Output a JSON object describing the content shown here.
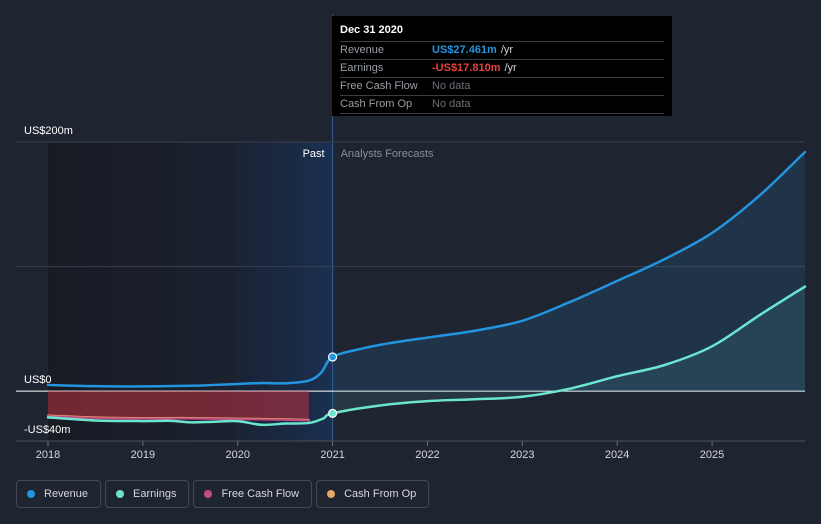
{
  "tooltip": {
    "date": "Dec 31 2020",
    "rows": [
      {
        "label": "Revenue",
        "value": "US$27.461m",
        "unit": "/yr",
        "color": "#2394df"
      },
      {
        "label": "Earnings",
        "value": "-US$17.810m",
        "unit": "/yr",
        "color": "#e64141"
      },
      {
        "label": "Free Cash Flow",
        "value": "No data",
        "unit": "",
        "color": ""
      },
      {
        "label": "Cash From Op",
        "value": "No data",
        "unit": "",
        "color": ""
      }
    ]
  },
  "regions": {
    "past": "Past",
    "forecast": "Analysts Forecasts"
  },
  "legend": [
    {
      "label": "Revenue",
      "color": "#2394df"
    },
    {
      "label": "Earnings",
      "color": "#6ce5cf"
    },
    {
      "label": "Free Cash Flow",
      "color": "#c34c85"
    },
    {
      "label": "Cash From Op",
      "color": "#e8a85f"
    }
  ],
  "chart_data": {
    "type": "line",
    "y_tick_labels": [
      {
        "value": 200,
        "label": "US$200m"
      },
      {
        "value": 0,
        "label": "US$0"
      },
      {
        "value": -40,
        "label": "-US$40m"
      }
    ],
    "ylim": [
      -40,
      200
    ],
    "xlim": [
      2018.0,
      2025.98
    ],
    "x_ticks": [
      2018,
      2019,
      2020,
      2021,
      2022,
      2023,
      2024,
      2025
    ],
    "x_tick_labels": [
      "2018",
      "2019",
      "2020",
      "2021",
      "2022",
      "2023",
      "2024",
      "2025"
    ],
    "past_end": 2021.0,
    "highlight_start": 2020.0,
    "series": [
      {
        "name": "Revenue",
        "color": "#2394df",
        "points": [
          [
            2018.0,
            5.0
          ],
          [
            2018.5,
            4.0
          ],
          [
            2019.0,
            3.8
          ],
          [
            2019.5,
            4.3
          ],
          [
            2019.75,
            5.0
          ],
          [
            2020.0,
            5.8
          ],
          [
            2020.25,
            6.5
          ],
          [
            2020.5,
            6.3
          ],
          [
            2020.75,
            8.5
          ],
          [
            2020.88,
            15.0
          ],
          [
            2021.0,
            27.461
          ],
          [
            2021.3,
            34.0
          ],
          [
            2021.6,
            38.5
          ],
          [
            2022.0,
            43.0
          ],
          [
            2022.5,
            48.5
          ],
          [
            2023.0,
            56.5
          ],
          [
            2023.5,
            71.5
          ],
          [
            2024.0,
            88.5
          ],
          [
            2024.5,
            106.0
          ],
          [
            2025.0,
            127.0
          ],
          [
            2025.5,
            157.0
          ],
          [
            2025.98,
            192.0
          ]
        ]
      },
      {
        "name": "Earnings",
        "color": "#6ce5cf",
        "points": [
          [
            2018.0,
            -21.0
          ],
          [
            2018.5,
            -23.5
          ],
          [
            2019.0,
            -24.0
          ],
          [
            2019.3,
            -23.8
          ],
          [
            2019.5,
            -25.0
          ],
          [
            2019.75,
            -24.5
          ],
          [
            2020.0,
            -24.0
          ],
          [
            2020.25,
            -27.0
          ],
          [
            2020.5,
            -26.0
          ],
          [
            2020.75,
            -25.5
          ],
          [
            2020.9,
            -22.0
          ],
          [
            2021.0,
            -17.81
          ],
          [
            2021.5,
            -11.5
          ],
          [
            2022.0,
            -8.0
          ],
          [
            2022.5,
            -6.5
          ],
          [
            2023.0,
            -4.5
          ],
          [
            2023.5,
            2.0
          ],
          [
            2024.0,
            12.0
          ],
          [
            2024.5,
            21.0
          ],
          [
            2025.0,
            36.0
          ],
          [
            2025.5,
            61.0
          ],
          [
            2025.98,
            84.0
          ]
        ]
      },
      {
        "name": "Free Cash Flow",
        "color": "#c34c85",
        "points": [
          [
            2018.0,
            -20.0
          ],
          [
            2018.5,
            -21.5
          ],
          [
            2019.0,
            -22.0
          ],
          [
            2019.5,
            -22.0
          ],
          [
            2020.0,
            -22.5
          ],
          [
            2020.5,
            -23.0
          ],
          [
            2020.75,
            -23.5
          ]
        ]
      },
      {
        "name": "Cash From Op",
        "color": "#e8a85f",
        "points": [
          [
            2018.0,
            -19.5
          ],
          [
            2018.5,
            -21.0
          ],
          [
            2019.0,
            -21.5
          ],
          [
            2019.5,
            -21.5
          ],
          [
            2020.0,
            -22.0
          ],
          [
            2020.5,
            -22.5
          ],
          [
            2020.75,
            -23.0
          ]
        ]
      }
    ]
  }
}
